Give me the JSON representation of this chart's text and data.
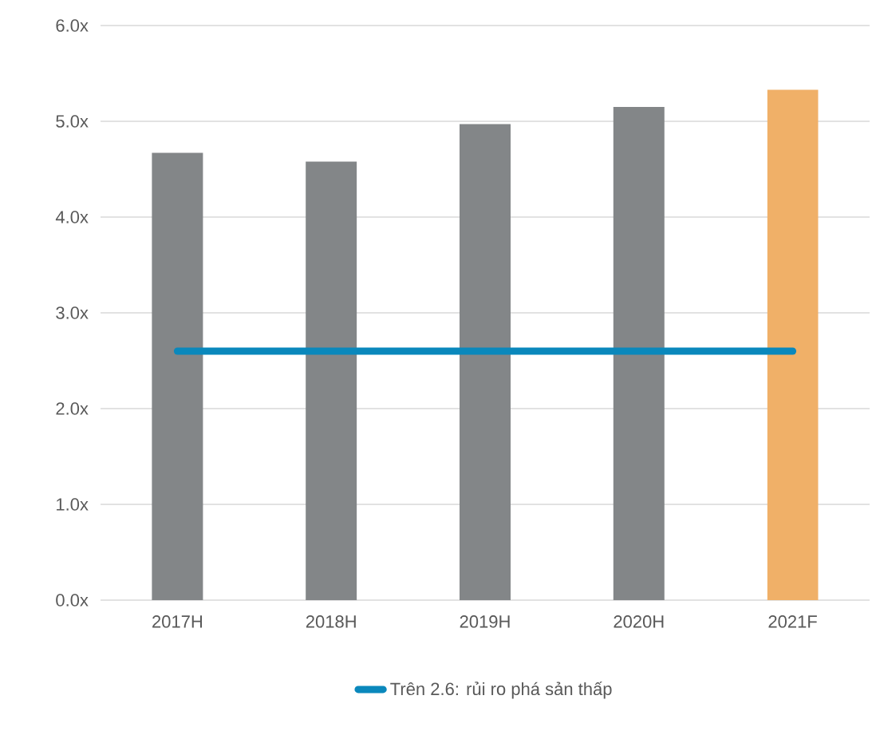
{
  "chart_data": {
    "type": "bar",
    "categories": [
      "2017H",
      "2018H",
      "2019H",
      "2020H",
      "2021F"
    ],
    "series": [
      {
        "colors": [
          "#838688",
          "#838688",
          "#838688",
          "#838688",
          "#f0b068"
        ],
        "values": [
          4.67,
          4.58,
          4.97,
          5.15,
          5.33
        ]
      },
      {
        "type": "line",
        "name": "Trên 2.6: rủi ro phá sản thấp",
        "color": "#0a88bc",
        "values": [
          2.6,
          2.6,
          2.6,
          2.6,
          2.6
        ]
      }
    ],
    "ylim": [
      0,
      6
    ],
    "yticks": [
      {
        "value": 0,
        "label": "0.0x"
      },
      {
        "value": 1,
        "label": "1.0x"
      },
      {
        "value": 2,
        "label": "2.0x"
      },
      {
        "value": 3,
        "label": "3.0x"
      },
      {
        "value": 4,
        "label": "4.0x"
      },
      {
        "value": 5,
        "label": "5.0x"
      },
      {
        "value": 6,
        "label": "6.0x"
      }
    ],
    "grid": "y",
    "legend": "bottom"
  }
}
